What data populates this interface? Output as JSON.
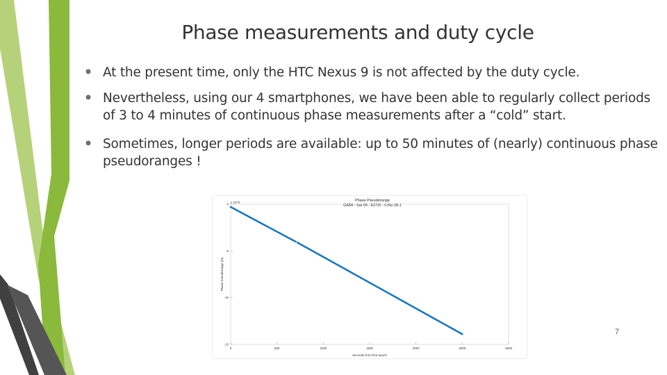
{
  "slide": {
    "title": "Phase measurements and duty cycle",
    "bullets": [
      "At the present time, only the HTC Nexus 9 is not affected by the duty cycle.",
      "Nevertheless, using our 4 smartphones, we have been able to regularly collect periods of 3 to 4 minutes of continuous phase measurements after a “cold” start.",
      "Sometimes, longer periods are available: up to 50 minutes of (nearly) continuous phase pseudoranges !"
    ],
    "page_number": "7"
  },
  "chart_data": {
    "type": "line",
    "title": "Phase Pseudorange",
    "subtitle": "GA58 - Sat 05 - E27/6 - C/No 38.1",
    "xlabel": "Seconds from first epoch",
    "ylabel": "Phase Pseudorange (m)",
    "y_exponent": "x 10^5",
    "xlim": [
      0,
      3000
    ],
    "ylim": [
      -15,
      0
    ],
    "x_ticks": [
      "0",
      "500",
      "1000",
      "1500",
      "2000",
      "2500",
      "3000"
    ],
    "y_ticks": [
      "0",
      "-5",
      "-10",
      "-15"
    ],
    "series": [
      {
        "x": [
          0,
          700
        ],
        "y": [
          -0.3,
          -4.0
        ]
      },
      {
        "x": [
          720,
          2500
        ],
        "y": [
          -4.1,
          -13.9
        ]
      }
    ],
    "line_color": "#1f77b4",
    "grid": false
  },
  "decor": {
    "dark": "#404040",
    "green_dark": "#8ab93c",
    "green_light": "#b5d27a"
  }
}
